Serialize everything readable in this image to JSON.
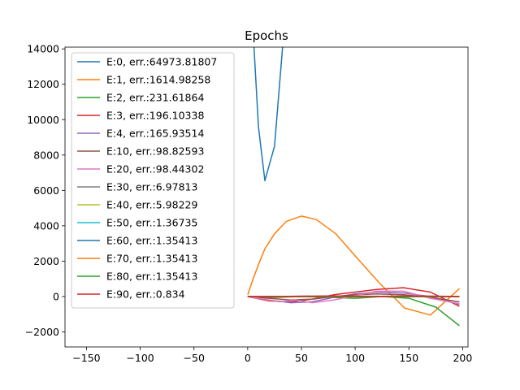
{
  "chart_data": {
    "type": "line",
    "title": "Epochs",
    "xlabel": "",
    "ylabel": "",
    "xlim": [
      -170,
      205
    ],
    "ylim": [
      -2850,
      14100
    ],
    "x_ticks": [
      -150,
      -100,
      -50,
      0,
      50,
      100,
      150,
      200
    ],
    "y_ticks": [
      -2000,
      0,
      2000,
      4000,
      6000,
      8000,
      10000,
      12000,
      14000
    ],
    "legend_position": "upper-left",
    "grid": false,
    "series": [
      {
        "name": "E:0, err.:64973.81807",
        "color": "#1f77b4",
        "x": [
          5,
          10,
          16,
          25,
          33
        ],
        "y": [
          15000,
          9600,
          6550,
          8500,
          14500
        ]
      },
      {
        "name": "E:1, err.:1614.98258",
        "color": "#ff7f0e",
        "x": [
          0,
          5,
          10,
          16,
          25,
          36,
          50,
          64,
          82,
          100,
          122,
          146,
          170,
          197
        ],
        "y": [
          100,
          1000,
          1800,
          2700,
          3550,
          4250,
          4550,
          4350,
          3550,
          2300,
          800,
          -650,
          -1050,
          450
        ]
      },
      {
        "name": "E:2, err.:231.61864",
        "color": "#2ca02c",
        "x": [
          0,
          25,
          50,
          75,
          100,
          125,
          150,
          175,
          197
        ],
        "y": [
          0,
          -50,
          0,
          -50,
          -100,
          0,
          -100,
          -600,
          -1650
        ]
      },
      {
        "name": "E:3, err.:196.10338",
        "color": "#d62728",
        "x": [
          0,
          20,
          40,
          60,
          80,
          100,
          120,
          145,
          170,
          197
        ],
        "y": [
          0,
          -250,
          -300,
          -150,
          100,
          250,
          400,
          500,
          250,
          -550
        ]
      },
      {
        "name": "E:4, err.:165.93514",
        "color": "#9467bd",
        "x": [
          0,
          20,
          40,
          60,
          80,
          100,
          120,
          145,
          170,
          197
        ],
        "y": [
          0,
          -200,
          -350,
          -300,
          -50,
          150,
          250,
          200,
          0,
          -450
        ]
      },
      {
        "name": "E:10, err.:98.82593",
        "color": "#8c564b",
        "x": [
          0,
          20,
          40,
          60,
          80,
          100,
          120,
          145,
          170,
          197
        ],
        "y": [
          0,
          -100,
          -200,
          -150,
          0,
          100,
          150,
          100,
          -50,
          -300
        ]
      },
      {
        "name": "E:20, err.:98.44302",
        "color": "#e377c2",
        "x": [
          0,
          15,
          30,
          45,
          60,
          80,
          100,
          120,
          145,
          170,
          197
        ],
        "y": [
          0,
          -150,
          -300,
          -200,
          -350,
          -200,
          50,
          300,
          300,
          -100,
          -400
        ]
      },
      {
        "name": "E:30, err.:6.97813",
        "color": "#7f7f7f",
        "x": [
          0,
          50,
          100,
          150,
          197
        ],
        "y": [
          0,
          0,
          0,
          0,
          0
        ]
      },
      {
        "name": "E:40, err.:5.98229",
        "color": "#bcbd22",
        "x": [
          0,
          50,
          100,
          150,
          197
        ],
        "y": [
          0,
          0,
          0,
          0,
          0
        ]
      },
      {
        "name": "E:50, err.:1.36735",
        "color": "#17becf",
        "x": [
          0,
          50,
          100,
          150,
          197
        ],
        "y": [
          0,
          0,
          0,
          0,
          0
        ]
      },
      {
        "name": "E:60, err.:1.35413",
        "color": "#1f77b4",
        "x": [
          0,
          50,
          100,
          150,
          197
        ],
        "y": [
          0,
          0,
          0,
          0,
          0
        ]
      },
      {
        "name": "E:70, err.:1.35413",
        "color": "#ff7f0e",
        "x": [
          0,
          50,
          100,
          150,
          197
        ],
        "y": [
          0,
          0,
          0,
          0,
          0
        ]
      },
      {
        "name": "E:80, err.:1.35413",
        "color": "#2ca02c",
        "x": [
          0,
          50,
          100,
          150,
          197
        ],
        "y": [
          0,
          0,
          0,
          0,
          0
        ]
      },
      {
        "name": "E:90, err.:0.834",
        "color": "#d62728",
        "x": [
          0,
          25,
          50,
          75,
          100,
          125,
          150,
          175,
          197
        ],
        "y": [
          0,
          0,
          20,
          30,
          20,
          10,
          30,
          20,
          0
        ]
      }
    ]
  }
}
